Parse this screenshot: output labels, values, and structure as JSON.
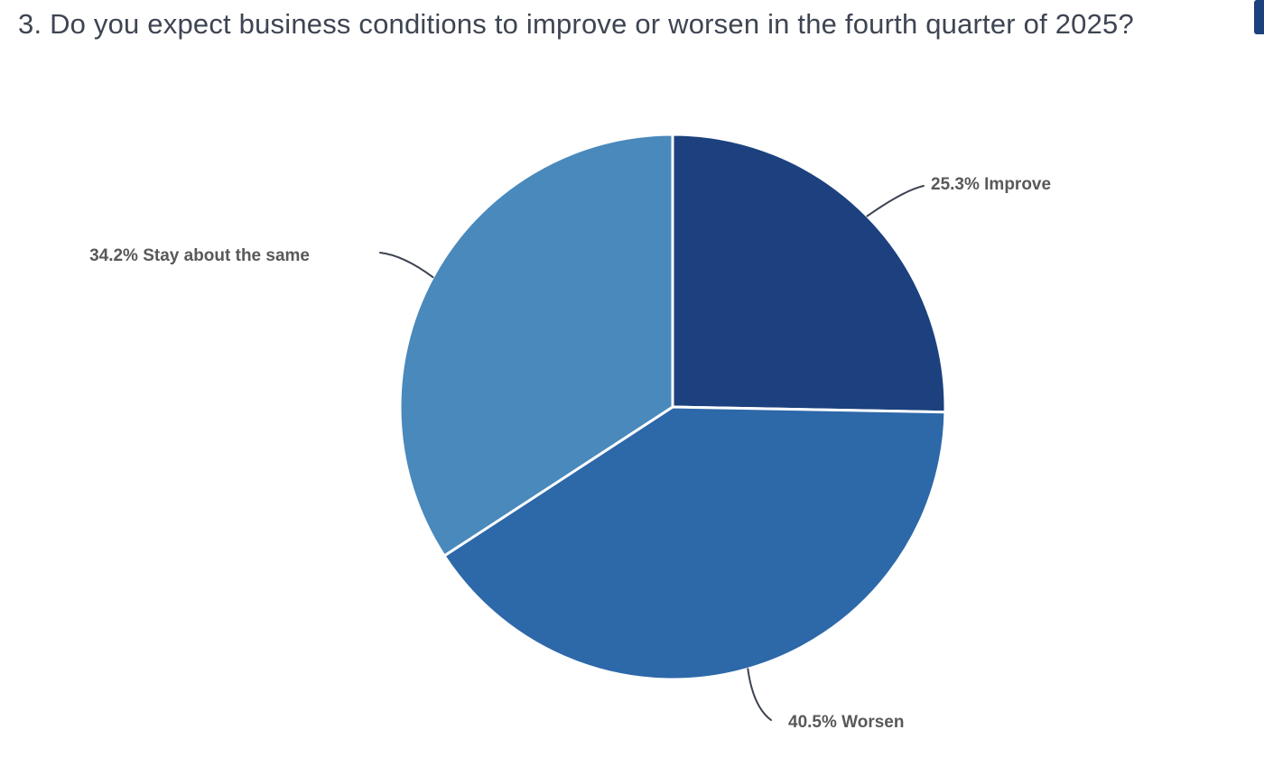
{
  "page": {
    "title": "3. Do you expect business conditions to improve or worsen in the fourth quarter of 2025?",
    "background": "#ffffff",
    "title_color": "#3E4552"
  },
  "chart_data": {
    "type": "pie",
    "title": "3. Do you expect business conditions to improve or worsen in the fourth quarter of 2025?",
    "legend": "none",
    "start_angle_deg": 0,
    "direction": "clockwise",
    "slice_border_color": "#ffffff",
    "connector_color": "#3C4350",
    "label_color": "#58595B",
    "slices": [
      {
        "label": "Improve",
        "value": 25.3,
        "display": "25.3% Improve",
        "color": "#1C417E"
      },
      {
        "label": "Worsen",
        "value": 40.5,
        "display": "40.5% Worsen",
        "color": "#2D68A9"
      },
      {
        "label": "Stay about the same",
        "value": 34.2,
        "display": "34.2% Stay about the same",
        "color": "#4989BC"
      }
    ]
  },
  "scrollbar": {
    "thumb_color": "#1C417E"
  }
}
